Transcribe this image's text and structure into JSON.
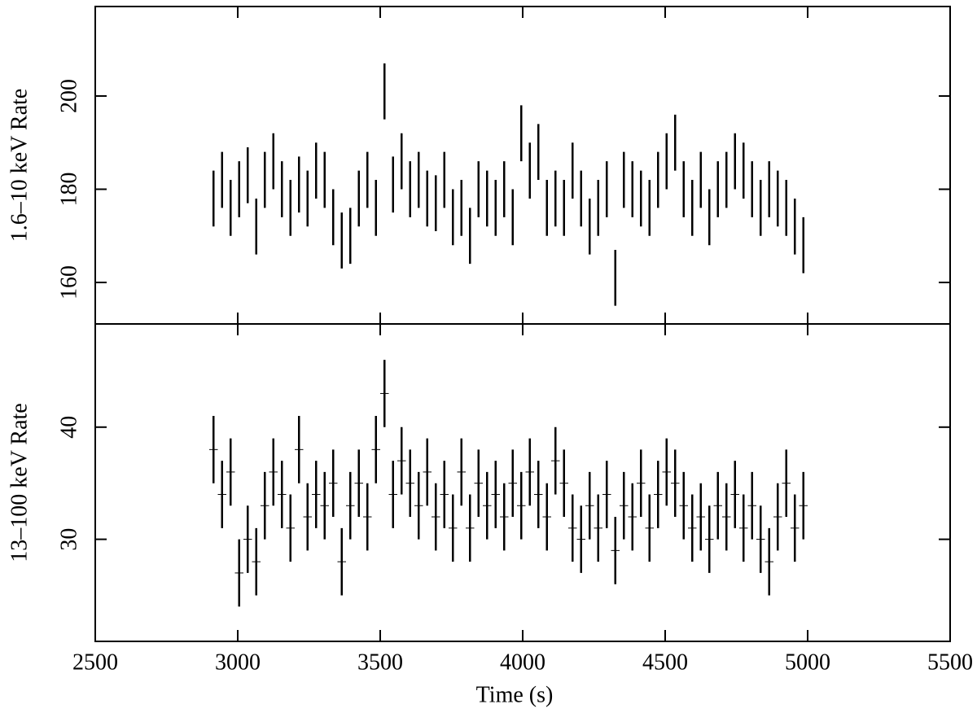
{
  "chart_data": [
    {
      "type": "errorbar",
      "ylabel": "1.6–10 keV Rate",
      "x": [
        2915,
        2945,
        2975,
        3005,
        3035,
        3065,
        3095,
        3125,
        3155,
        3185,
        3215,
        3245,
        3275,
        3305,
        3335,
        3365,
        3395,
        3425,
        3455,
        3485,
        3515,
        3545,
        3575,
        3605,
        3635,
        3665,
        3695,
        3725,
        3755,
        3785,
        3815,
        3845,
        3875,
        3905,
        3935,
        3965,
        3995,
        4025,
        4055,
        4085,
        4115,
        4145,
        4175,
        4205,
        4235,
        4265,
        4295,
        4325,
        4355,
        4385,
        4415,
        4445,
        4475,
        4505,
        4535,
        4565,
        4595,
        4625,
        4655,
        4685,
        4715,
        4745,
        4775,
        4805,
        4835,
        4865,
        4895,
        4925,
        4955,
        4985
      ],
      "values": [
        178,
        182,
        176,
        180,
        183,
        172,
        182,
        186,
        180,
        176,
        181,
        178,
        184,
        182,
        174,
        169,
        170,
        178,
        182,
        176,
        201,
        181,
        186,
        180,
        182,
        178,
        177,
        182,
        174,
        176,
        170,
        180,
        178,
        176,
        180,
        174,
        192,
        184,
        188,
        176,
        178,
        176,
        184,
        178,
        172,
        176,
        180,
        161,
        182,
        180,
        178,
        176,
        182,
        186,
        190,
        180,
        176,
        182,
        174,
        180,
        182,
        186,
        184,
        180,
        176,
        180,
        178,
        176,
        172,
        168
      ],
      "yerr": 6,
      "color": "#000000",
      "xlim": [
        2500,
        5500
      ],
      "xticks": [
        2500,
        3000,
        3500,
        4000,
        4500,
        5000,
        5500
      ],
      "ylim": [
        151.1,
        219.2
      ],
      "yticks": [
        160,
        180,
        200
      ]
    },
    {
      "type": "errorbar",
      "ylabel": "13–100 keV Rate",
      "xlabel": "Time (s)",
      "x": [
        2915,
        2945,
        2975,
        3005,
        3035,
        3065,
        3095,
        3125,
        3155,
        3185,
        3215,
        3245,
        3275,
        3305,
        3335,
        3365,
        3395,
        3425,
        3455,
        3485,
        3515,
        3545,
        3575,
        3605,
        3635,
        3665,
        3695,
        3725,
        3755,
        3785,
        3815,
        3845,
        3875,
        3905,
        3935,
        3965,
        3995,
        4025,
        4055,
        4085,
        4115,
        4145,
        4175,
        4205,
        4235,
        4265,
        4295,
        4325,
        4355,
        4385,
        4415,
        4445,
        4475,
        4505,
        4535,
        4565,
        4595,
        4625,
        4655,
        4685,
        4715,
        4745,
        4775,
        4805,
        4835,
        4865,
        4895,
        4925,
        4955,
        4985
      ],
      "values": [
        38,
        34,
        36,
        27,
        30,
        28,
        33,
        36,
        34,
        31,
        38,
        32,
        34,
        33,
        35,
        28,
        33,
        35,
        32,
        38,
        43,
        34,
        37,
        35,
        33,
        36,
        32,
        34,
        31,
        36,
        31,
        35,
        33,
        34,
        32,
        35,
        33,
        36,
        34,
        32,
        37,
        35,
        31,
        30,
        33,
        31,
        34,
        29,
        33,
        32,
        35,
        31,
        34,
        36,
        35,
        33,
        31,
        32,
        30,
        33,
        32,
        34,
        31,
        33,
        30,
        28,
        32,
        35,
        31,
        33
      ],
      "yerr": 3,
      "xerr": 15,
      "color": "#000000",
      "xlim": [
        2500,
        5500
      ],
      "xticks": [
        2500,
        3000,
        3500,
        4000,
        4500,
        5000,
        5500
      ],
      "ylim": [
        20.9,
        49.2
      ],
      "yticks": [
        30,
        40
      ]
    }
  ]
}
